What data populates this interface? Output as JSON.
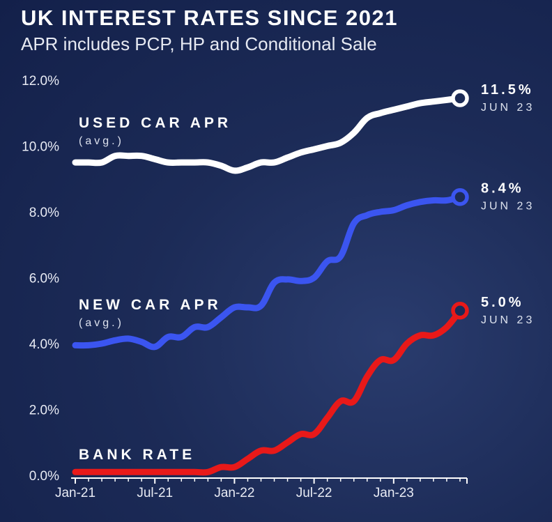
{
  "chart_data": {
    "type": "line",
    "title": "UK INTEREST RATES SINCE 2021",
    "subtitle": "APR includes PCP, HP and Conditional Sale",
    "xlabel": "",
    "ylabel": "",
    "ylim": [
      0,
      12
    ],
    "yticks": [
      "0.0%",
      "2.0%",
      "4.0%",
      "6.0%",
      "8.0%",
      "10.0%",
      "12.0%"
    ],
    "xticks": [
      "Jan-21",
      "Jul-21",
      "Jan-22",
      "Jul-22",
      "Jan-23"
    ],
    "x": [
      "Jan-21",
      "Feb-21",
      "Mar-21",
      "Apr-21",
      "May-21",
      "Jun-21",
      "Jul-21",
      "Aug-21",
      "Sep-21",
      "Oct-21",
      "Nov-21",
      "Dec-21",
      "Jan-22",
      "Feb-22",
      "Mar-22",
      "Apr-22",
      "May-22",
      "Jun-22",
      "Jul-22",
      "Aug-22",
      "Sep-22",
      "Oct-22",
      "Nov-22",
      "Dec-22",
      "Jan-23",
      "Feb-23",
      "Mar-23",
      "Apr-23",
      "May-23",
      "Jun-23"
    ],
    "series": [
      {
        "name": "USED CAR APR",
        "subname": "(avg.)",
        "color": "#ffffff",
        "end_label": "11.5%",
        "end_date": "JUN 23",
        "values": [
          9.5,
          9.5,
          9.5,
          9.7,
          9.7,
          9.7,
          9.6,
          9.5,
          9.5,
          9.5,
          9.5,
          9.4,
          9.25,
          9.35,
          9.5,
          9.5,
          9.65,
          9.8,
          9.9,
          10.0,
          10.1,
          10.4,
          10.85,
          11.0,
          11.1,
          11.2,
          11.3,
          11.35,
          11.4,
          11.45
        ]
      },
      {
        "name": "NEW CAR APR",
        "subname": "(avg.)",
        "color": "#3b55f0",
        "end_label": "8.4%",
        "end_date": "JUN 23",
        "values": [
          3.95,
          3.95,
          4.0,
          4.1,
          4.15,
          4.05,
          3.9,
          4.2,
          4.2,
          4.5,
          4.5,
          4.8,
          5.1,
          5.1,
          5.15,
          5.85,
          5.95,
          5.9,
          6.0,
          6.5,
          6.65,
          7.65,
          7.9,
          8.0,
          8.05,
          8.2,
          8.3,
          8.35,
          8.35,
          8.45
        ]
      },
      {
        "name": "BANK RATE",
        "subname": "",
        "color": "#e81919",
        "end_label": "5.0%",
        "end_date": "JUN 23",
        "values": [
          0.1,
          0.1,
          0.1,
          0.1,
          0.1,
          0.1,
          0.1,
          0.1,
          0.1,
          0.1,
          0.1,
          0.25,
          0.25,
          0.5,
          0.75,
          0.75,
          1.0,
          1.25,
          1.25,
          1.75,
          2.25,
          2.25,
          3.0,
          3.5,
          3.5,
          4.0,
          4.25,
          4.25,
          4.5,
          5.0
        ]
      }
    ]
  }
}
